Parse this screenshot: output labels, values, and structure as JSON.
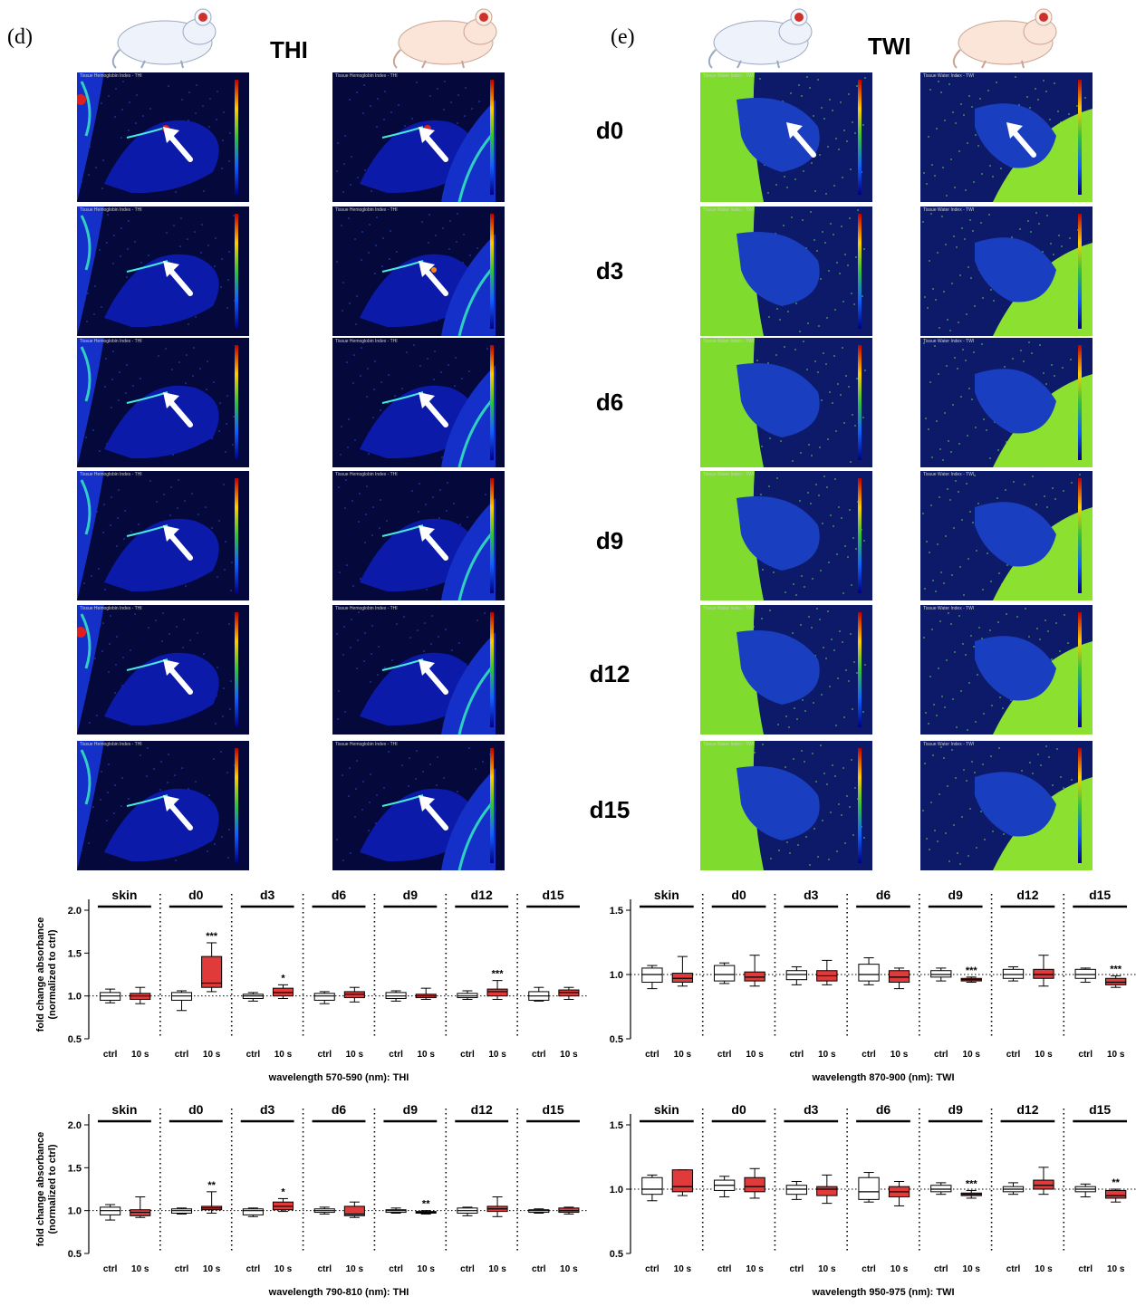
{
  "panels": {
    "d": {
      "label": "(d)",
      "title": "THI",
      "tile_caption": "Tissue Hemoglobin Index - THI"
    },
    "e": {
      "label": "(e)",
      "title": "TWI",
      "tile_caption": "Tissue Water Index - TWI"
    }
  },
  "days": [
    "d0",
    "d3",
    "d6",
    "d9",
    "d12",
    "d15"
  ],
  "arrows": {
    "thi_left": [
      true,
      true,
      true,
      true,
      true,
      true
    ],
    "thi_right": [
      true,
      true,
      true,
      true,
      true,
      true
    ],
    "twi_left": [
      true,
      false,
      false,
      false,
      false,
      false
    ],
    "twi_right": [
      true,
      false,
      false,
      false,
      false,
      false
    ]
  },
  "colors": {
    "control": "#ffffff",
    "treated": "#e03a3a",
    "mouse_white": "#eef3fb",
    "mouse_pink": "#fbe4d8",
    "eye": "#d0312d"
  },
  "icons": [
    "mouse-white-icon",
    "mouse-pink-icon",
    "arrow-icon"
  ],
  "chart_data": [
    {
      "type": "box",
      "xlabel": "wavelength 570-590 (nm): THI",
      "ylabel": "fold change absorbance\n(normalized to ctrl)",
      "ylim": [
        0.5,
        2.0
      ],
      "yticks": [
        "0.5",
        "1.0",
        "1.5",
        "2.0"
      ],
      "groups": [
        "skin",
        "d0",
        "d3",
        "d6",
        "d9",
        "d12",
        "d15"
      ],
      "conditions": [
        "ctrl",
        "10 s"
      ],
      "boxes": [
        [
          {
            "min": 0.92,
            "q1": 0.95,
            "med": 1.0,
            "q3": 1.04,
            "max": 1.08
          },
          {
            "min": 0.91,
            "q1": 0.96,
            "med": 1.0,
            "q3": 1.03,
            "max": 1.1
          }
        ],
        [
          {
            "min": 0.83,
            "q1": 0.95,
            "med": 1.0,
            "q3": 1.04,
            "max": 1.06
          },
          {
            "min": 1.05,
            "q1": 1.1,
            "med": 1.15,
            "q3": 1.46,
            "max": 1.62
          }
        ],
        [
          {
            "min": 0.94,
            "q1": 0.97,
            "med": 1.0,
            "q3": 1.02,
            "max": 1.04
          },
          {
            "min": 0.97,
            "q1": 1.0,
            "med": 1.04,
            "q3": 1.09,
            "max": 1.13
          }
        ],
        [
          {
            "min": 0.91,
            "q1": 0.95,
            "med": 1.0,
            "q3": 1.03,
            "max": 1.05
          },
          {
            "min": 0.93,
            "q1": 0.98,
            "med": 1.02,
            "q3": 1.05,
            "max": 1.1
          }
        ],
        [
          {
            "min": 0.94,
            "q1": 0.97,
            "med": 1.0,
            "q3": 1.04,
            "max": 1.06
          },
          {
            "min": 0.96,
            "q1": 0.98,
            "med": 1.0,
            "q3": 1.02,
            "max": 1.09
          }
        ],
        [
          {
            "min": 0.96,
            "q1": 0.98,
            "med": 1.0,
            "q3": 1.03,
            "max": 1.06
          },
          {
            "min": 0.96,
            "q1": 1.0,
            "med": 1.05,
            "q3": 1.08,
            "max": 1.18
          }
        ],
        [
          {
            "min": 0.94,
            "q1": 0.95,
            "med": 1.0,
            "q3": 1.05,
            "max": 1.1
          },
          {
            "min": 0.96,
            "q1": 1.0,
            "med": 1.04,
            "q3": 1.07,
            "max": 1.1
          }
        ]
      ],
      "significance": [
        "",
        "***",
        "*",
        "",
        "",
        "***",
        ""
      ]
    },
    {
      "type": "box",
      "xlabel": "wavelength 870-900 (nm): TWI",
      "ylabel": "",
      "ylim": [
        0.5,
        1.5
      ],
      "yticks": [
        "0.5",
        "1.0",
        "1.5"
      ],
      "groups": [
        "skin",
        "d0",
        "d3",
        "d6",
        "d9",
        "d12",
        "d15"
      ],
      "conditions": [
        "ctrl",
        "10 s"
      ],
      "boxes": [
        [
          {
            "min": 0.89,
            "q1": 0.94,
            "med": 1.0,
            "q3": 1.05,
            "max": 1.07
          },
          {
            "min": 0.91,
            "q1": 0.94,
            "med": 0.97,
            "q3": 1.01,
            "max": 1.14
          }
        ],
        [
          {
            "min": 0.93,
            "q1": 0.95,
            "med": 1.0,
            "q3": 1.07,
            "max": 1.09
          },
          {
            "min": 0.91,
            "q1": 0.95,
            "med": 0.98,
            "q3": 1.02,
            "max": 1.15
          }
        ],
        [
          {
            "min": 0.92,
            "q1": 0.96,
            "med": 1.0,
            "q3": 1.03,
            "max": 1.06
          },
          {
            "min": 0.92,
            "q1": 0.95,
            "med": 0.99,
            "q3": 1.03,
            "max": 1.11
          }
        ],
        [
          {
            "min": 0.92,
            "q1": 0.95,
            "med": 1.0,
            "q3": 1.08,
            "max": 1.13
          },
          {
            "min": 0.89,
            "q1": 0.94,
            "med": 0.98,
            "q3": 1.03,
            "max": 1.05
          }
        ],
        [
          {
            "min": 0.95,
            "q1": 0.98,
            "med": 1.0,
            "q3": 1.03,
            "max": 1.05
          },
          {
            "min": 0.94,
            "q1": 0.95,
            "med": 0.96,
            "q3": 0.97,
            "max": 0.98
          }
        ],
        [
          {
            "min": 0.95,
            "q1": 0.97,
            "med": 1.0,
            "q3": 1.04,
            "max": 1.06
          },
          {
            "min": 0.91,
            "q1": 0.97,
            "med": 1.0,
            "q3": 1.04,
            "max": 1.15
          }
        ],
        [
          {
            "min": 0.94,
            "q1": 0.97,
            "med": 1.0,
            "q3": 1.04,
            "max": 1.05
          },
          {
            "min": 0.9,
            "q1": 0.92,
            "med": 0.94,
            "q3": 0.97,
            "max": 0.99
          }
        ]
      ],
      "significance": [
        "",
        "",
        "",
        "",
        "***",
        "",
        "***"
      ]
    },
    {
      "type": "box",
      "xlabel": "wavelength 790-810 (nm): THI",
      "ylabel": "fold change absorbance\n(normalized to ctrl)",
      "ylim": [
        0.5,
        2.0
      ],
      "yticks": [
        "0.5",
        "1.0",
        "1.5",
        "2.0"
      ],
      "groups": [
        "skin",
        "d0",
        "d3",
        "d6",
        "d9",
        "d12",
        "d15"
      ],
      "conditions": [
        "ctrl",
        "10 s"
      ],
      "boxes": [
        [
          {
            "min": 0.89,
            "q1": 0.95,
            "med": 1.0,
            "q3": 1.04,
            "max": 1.07
          },
          {
            "min": 0.92,
            "q1": 0.94,
            "med": 0.98,
            "q3": 1.01,
            "max": 1.16
          }
        ],
        [
          {
            "min": 0.96,
            "q1": 0.97,
            "med": 1.0,
            "q3": 1.02,
            "max": 1.03
          },
          {
            "min": 0.97,
            "q1": 1.01,
            "med": 1.03,
            "q3": 1.05,
            "max": 1.22
          }
        ],
        [
          {
            "min": 0.93,
            "q1": 0.95,
            "med": 1.0,
            "q3": 1.02,
            "max": 1.03
          },
          {
            "min": 0.99,
            "q1": 1.01,
            "med": 1.05,
            "q3": 1.1,
            "max": 1.14
          }
        ],
        [
          {
            "min": 0.96,
            "q1": 0.98,
            "med": 1.0,
            "q3": 1.02,
            "max": 1.04
          },
          {
            "min": 0.92,
            "q1": 0.94,
            "med": 0.96,
            "q3": 1.05,
            "max": 1.1
          }
        ],
        [
          {
            "min": 0.97,
            "q1": 0.98,
            "med": 1.0,
            "q3": 1.01,
            "max": 1.03
          },
          {
            "min": 0.96,
            "q1": 0.97,
            "med": 0.98,
            "q3": 0.99,
            "max": 1.0
          }
        ],
        [
          {
            "min": 0.94,
            "q1": 0.97,
            "med": 1.0,
            "q3": 1.03,
            "max": 1.04
          },
          {
            "min": 0.93,
            "q1": 0.99,
            "med": 1.02,
            "q3": 1.05,
            "max": 1.16
          }
        ],
        [
          {
            "min": 0.97,
            "q1": 0.98,
            "med": 1.0,
            "q3": 1.01,
            "max": 1.02
          },
          {
            "min": 0.96,
            "q1": 0.98,
            "med": 1.0,
            "q3": 1.03,
            "max": 1.04
          }
        ]
      ],
      "significance": [
        "",
        "**",
        "*",
        "",
        "**",
        "",
        ""
      ]
    },
    {
      "type": "box",
      "xlabel": "wavelength 950-975 (nm): TWI",
      "ylabel": "",
      "ylim": [
        0.5,
        1.5
      ],
      "yticks": [
        "0.5",
        "1.0",
        "1.5"
      ],
      "groups": [
        "skin",
        "d0",
        "d3",
        "d6",
        "d9",
        "d12",
        "d15"
      ],
      "conditions": [
        "ctrl",
        "10 s"
      ],
      "boxes": [
        [
          {
            "min": 0.91,
            "q1": 0.96,
            "med": 1.0,
            "q3": 1.09,
            "max": 1.11
          },
          {
            "min": 0.95,
            "q1": 0.98,
            "med": 1.02,
            "q3": 1.15,
            "max": 1.15
          }
        ],
        [
          {
            "min": 0.94,
            "q1": 0.99,
            "med": 1.03,
            "q3": 1.07,
            "max": 1.1
          },
          {
            "min": 0.93,
            "q1": 0.98,
            "med": 1.02,
            "q3": 1.09,
            "max": 1.16
          }
        ],
        [
          {
            "min": 0.92,
            "q1": 0.96,
            "med": 1.0,
            "q3": 1.03,
            "max": 1.06
          },
          {
            "min": 0.89,
            "q1": 0.95,
            "med": 1.0,
            "q3": 1.02,
            "max": 1.11
          }
        ],
        [
          {
            "min": 0.9,
            "q1": 0.92,
            "med": 0.98,
            "q3": 1.09,
            "max": 1.13
          },
          {
            "min": 0.87,
            "q1": 0.94,
            "med": 0.98,
            "q3": 1.02,
            "max": 1.06
          }
        ],
        [
          {
            "min": 0.96,
            "q1": 0.98,
            "med": 1.0,
            "q3": 1.03,
            "max": 1.05
          },
          {
            "min": 0.93,
            "q1": 0.95,
            "med": 0.96,
            "q3": 0.97,
            "max": 0.99
          }
        ],
        [
          {
            "min": 0.96,
            "q1": 0.98,
            "med": 1.0,
            "q3": 1.02,
            "max": 1.05
          },
          {
            "min": 0.96,
            "q1": 1.0,
            "med": 1.03,
            "q3": 1.07,
            "max": 1.17
          }
        ],
        [
          {
            "min": 0.94,
            "q1": 0.98,
            "med": 1.0,
            "q3": 1.02,
            "max": 1.04
          },
          {
            "min": 0.9,
            "q1": 0.93,
            "med": 0.95,
            "q3": 0.99,
            "max": 1.0
          }
        ]
      ],
      "significance": [
        "",
        "",
        "",
        "",
        "***",
        "",
        "**"
      ]
    }
  ]
}
